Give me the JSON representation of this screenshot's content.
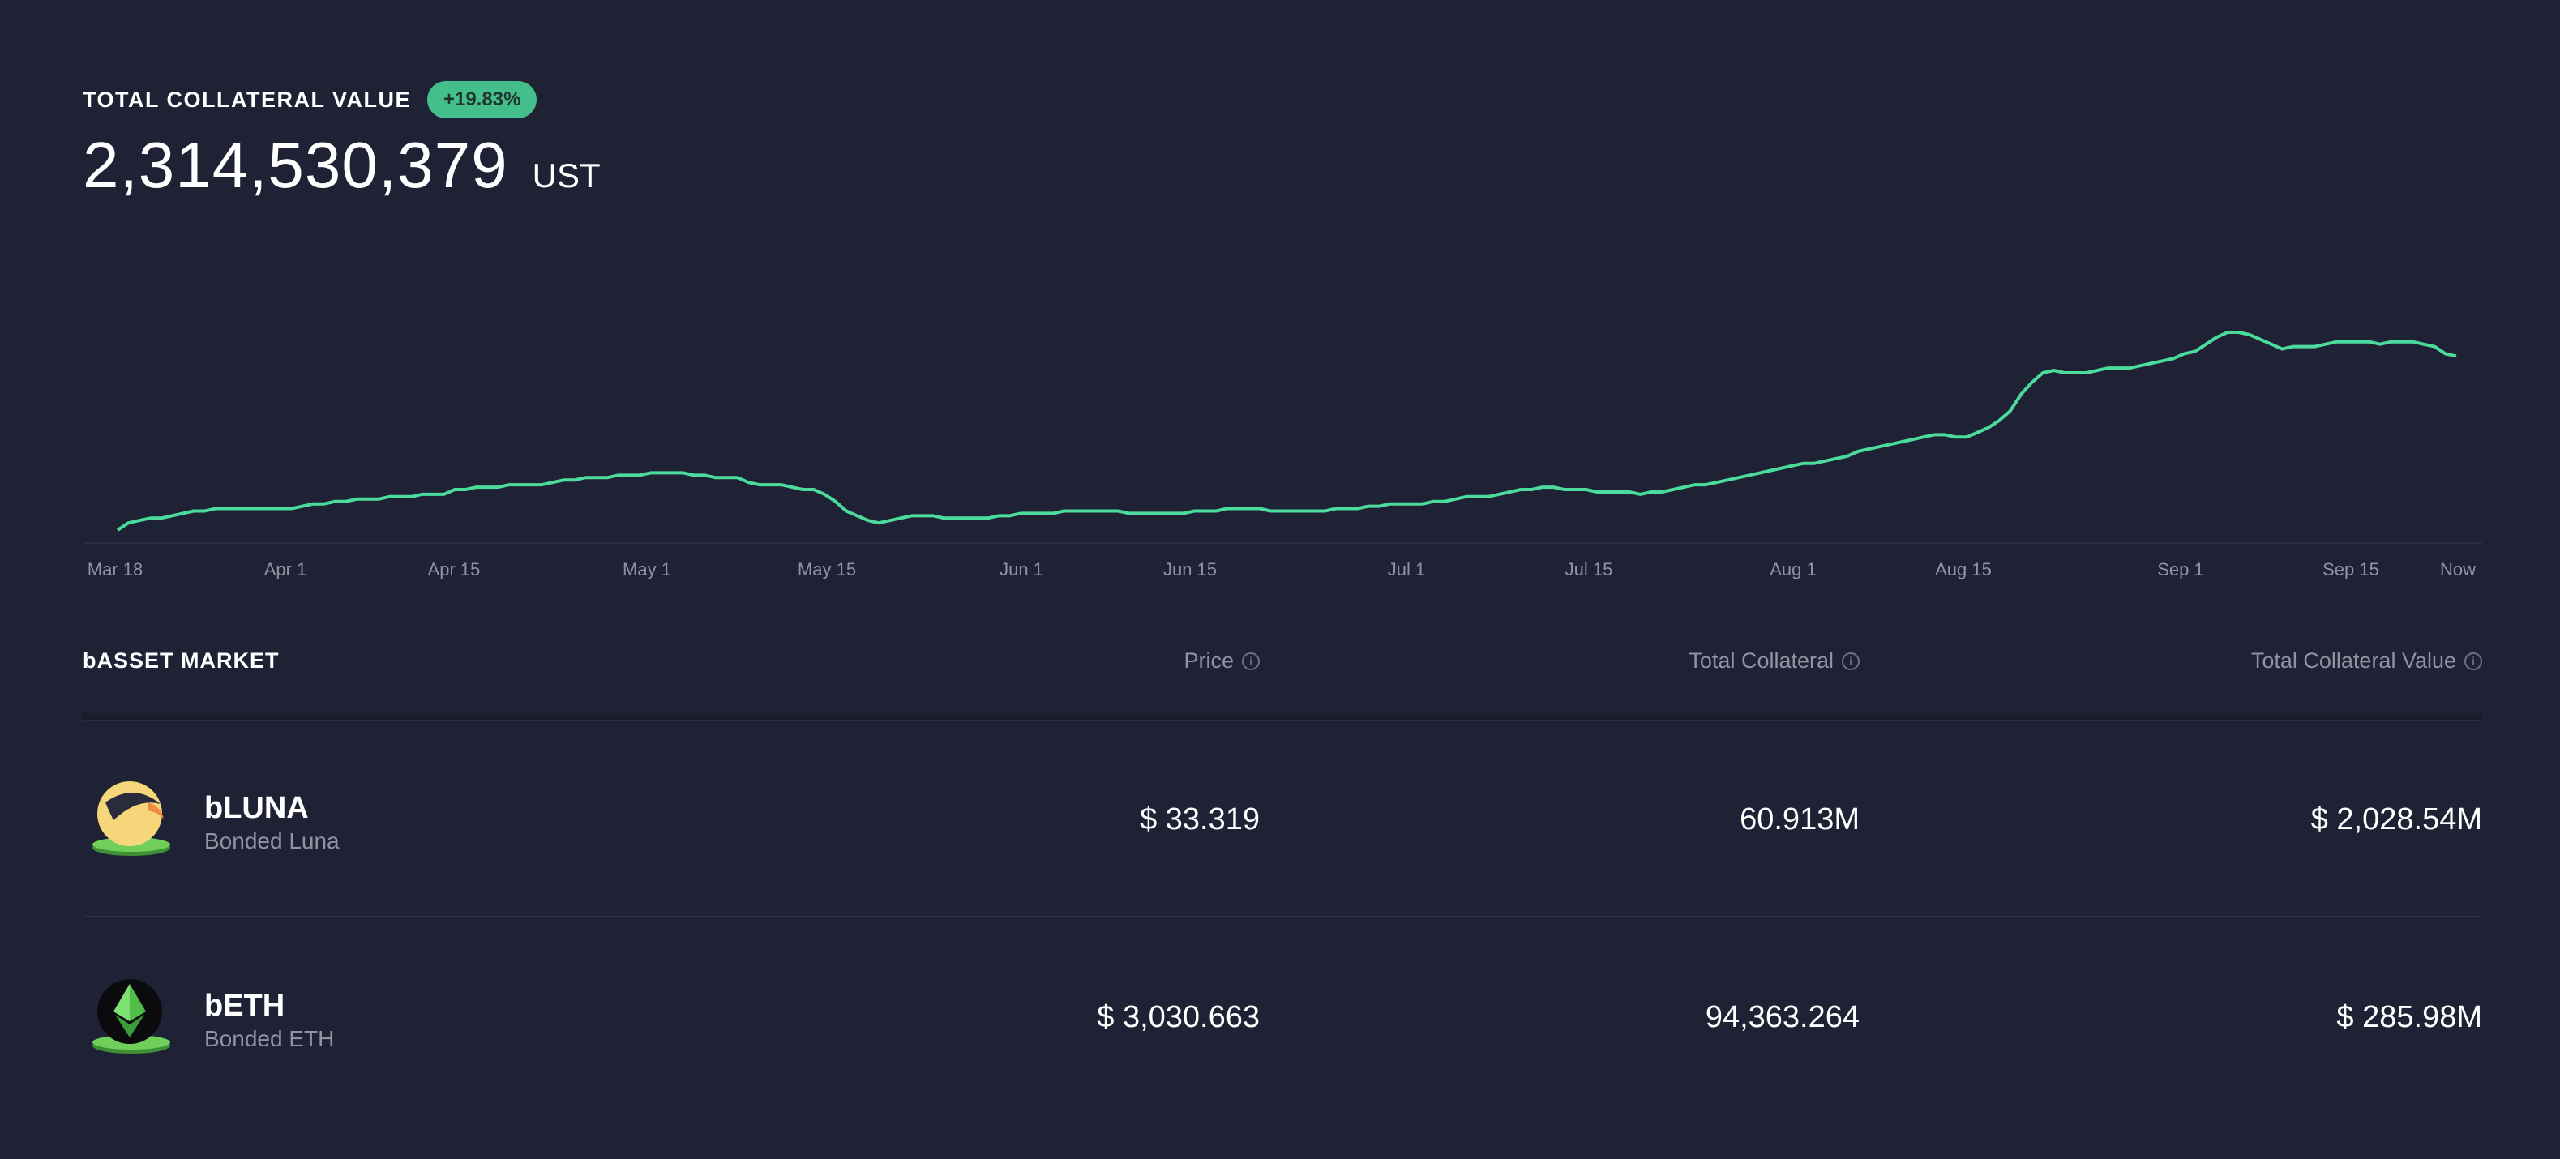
{
  "header": {
    "label": "TOTAL COLLATERAL VALUE",
    "change_badge": "+19.83%",
    "total_value": "2,314,530,379",
    "unit": "UST"
  },
  "colors": {
    "background": "#1f2234",
    "accent": "#4bdb9c",
    "muted": "#8f93a2"
  },
  "chart_data": {
    "type": "line",
    "x_tick_labels": [
      "Mar 18",
      "Apr 1",
      "Apr 15",
      "May 1",
      "May 15",
      "Jun 1",
      "Jun 15",
      "Jul 1",
      "Jul 15",
      "Aug 1",
      "Aug 15",
      "Sep 1",
      "Sep 15",
      "Now"
    ],
    "series": [
      {
        "color": "#4bdb9c",
        "values": [
          0.0,
          0.03,
          0.04,
          0.05,
          0.05,
          0.06,
          0.07,
          0.08,
          0.08,
          0.09,
          0.09,
          0.09,
          0.09,
          0.09,
          0.09,
          0.09,
          0.09,
          0.1,
          0.11,
          0.11,
          0.12,
          0.12,
          0.13,
          0.13,
          0.13,
          0.14,
          0.14,
          0.14,
          0.15,
          0.15,
          0.15,
          0.17,
          0.17,
          0.18,
          0.18,
          0.18,
          0.19,
          0.19,
          0.19,
          0.19,
          0.2,
          0.21,
          0.21,
          0.22,
          0.22,
          0.22,
          0.23,
          0.23,
          0.23,
          0.24,
          0.24,
          0.24,
          0.24,
          0.23,
          0.23,
          0.22,
          0.22,
          0.22,
          0.2,
          0.19,
          0.19,
          0.19,
          0.18,
          0.17,
          0.17,
          0.15,
          0.12,
          0.08,
          0.06,
          0.04,
          0.03,
          0.04,
          0.05,
          0.06,
          0.06,
          0.06,
          0.05,
          0.05,
          0.05,
          0.05,
          0.05,
          0.06,
          0.06,
          0.07,
          0.07,
          0.07,
          0.07,
          0.08,
          0.08,
          0.08,
          0.08,
          0.08,
          0.08,
          0.07,
          0.07,
          0.07,
          0.07,
          0.07,
          0.07,
          0.08,
          0.08,
          0.08,
          0.09,
          0.09,
          0.09,
          0.09,
          0.08,
          0.08,
          0.08,
          0.08,
          0.08,
          0.08,
          0.09,
          0.09,
          0.09,
          0.1,
          0.1,
          0.11,
          0.11,
          0.11,
          0.11,
          0.12,
          0.12,
          0.13,
          0.14,
          0.14,
          0.14,
          0.15,
          0.16,
          0.17,
          0.17,
          0.18,
          0.18,
          0.17,
          0.17,
          0.17,
          0.16,
          0.16,
          0.16,
          0.16,
          0.15,
          0.16,
          0.16,
          0.17,
          0.18,
          0.19,
          0.19,
          0.2,
          0.21,
          0.22,
          0.23,
          0.24,
          0.25,
          0.26,
          0.27,
          0.28,
          0.28,
          0.29,
          0.3,
          0.31,
          0.33,
          0.34,
          0.35,
          0.36,
          0.37,
          0.38,
          0.39,
          0.4,
          0.4,
          0.39,
          0.39,
          0.41,
          0.43,
          0.46,
          0.5,
          0.57,
          0.62,
          0.66,
          0.67,
          0.66,
          0.66,
          0.66,
          0.67,
          0.68,
          0.68,
          0.68,
          0.69,
          0.7,
          0.71,
          0.72,
          0.74,
          0.75,
          0.78,
          0.81,
          0.83,
          0.83,
          0.82,
          0.8,
          0.78,
          0.76,
          0.77,
          0.77,
          0.77,
          0.78,
          0.79,
          0.79,
          0.79,
          0.79,
          0.78,
          0.79,
          0.79,
          0.79,
          0.78,
          0.77,
          0.74,
          0.73
        ]
      }
    ],
    "grid": false,
    "legend": "none"
  },
  "table": {
    "title": "bASSET MARKET",
    "col_price": "Price",
    "col_collateral": "Total Collateral",
    "col_value": "Total Collateral Value",
    "info_glyph": "i",
    "rows": [
      {
        "symbol": "bLUNA",
        "name": "Bonded Luna",
        "price": "$ 33.319",
        "collateral": "60.913M",
        "value": "$ 2,028.54M",
        "icon": "luna-icon"
      },
      {
        "symbol": "bETH",
        "name": "Bonded ETH",
        "price": "$ 3,030.663",
        "collateral": "94,363.264",
        "value": "$ 285.98M",
        "icon": "eth-icon"
      }
    ]
  }
}
